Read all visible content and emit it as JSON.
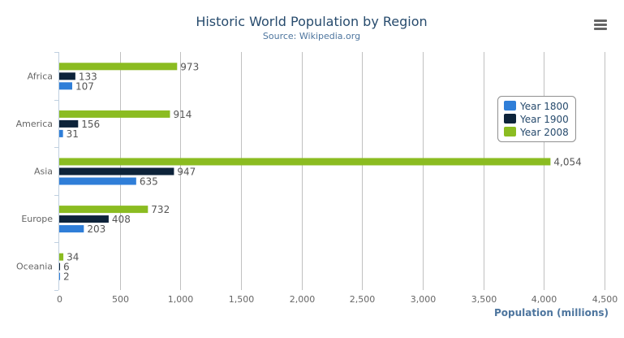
{
  "chart_data": {
    "type": "bar",
    "orientation": "horizontal",
    "title": "Historic World Population by Region",
    "subtitle": "Source: Wikipedia.org",
    "xlabel": "",
    "ylabel": "Population (millions)",
    "categories": [
      "Africa",
      "America",
      "Asia",
      "Europe",
      "Oceania"
    ],
    "series": [
      {
        "name": "Year 1800",
        "color": "#2f7ed8",
        "values": [
          107,
          31,
          635,
          203,
          2
        ]
      },
      {
        "name": "Year 1900",
        "color": "#0d233a",
        "values": [
          133,
          156,
          947,
          408,
          6
        ]
      },
      {
        "name": "Year 2008",
        "color": "#8bbc21",
        "values": [
          973,
          914,
          4054,
          732,
          34
        ]
      }
    ],
    "value_axis": {
      "min": 0,
      "max": 4500,
      "ticks": [
        0,
        500,
        1000,
        1500,
        2000,
        2500,
        3000,
        3500,
        4000,
        4500
      ],
      "tick_labels": [
        "0",
        "500",
        "1,000",
        "1,500",
        "2,000",
        "2,500",
        "3,000",
        "3,500",
        "4,000",
        "4,500"
      ]
    },
    "grid": true,
    "data_labels": true,
    "legend": "right"
  },
  "menu_icon": "hamburger-menu-icon"
}
